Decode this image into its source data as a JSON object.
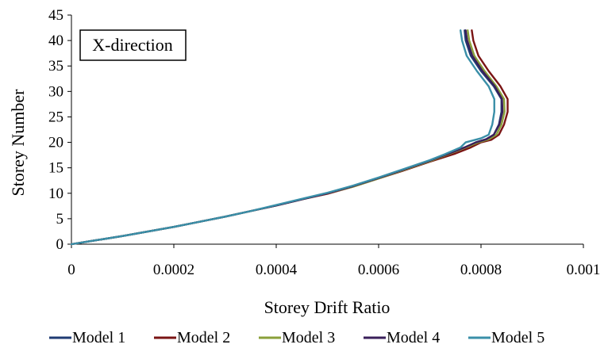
{
  "chart_data": {
    "type": "line",
    "title": "",
    "annotation": "X-direction",
    "xlabel": "Storey Drift Ratio",
    "ylabel": "Storey Number",
    "xlim": [
      0,
      0.001
    ],
    "ylim": [
      0,
      45
    ],
    "xticks": [
      0,
      0.0002,
      0.0004,
      0.0006,
      0.0008,
      0.001
    ],
    "xtick_labels": [
      "0",
      "0.0002",
      "0.0004",
      "0.0006",
      "0.0008",
      "0.001"
    ],
    "yticks": [
      0,
      5,
      10,
      15,
      20,
      25,
      30,
      35,
      40,
      45
    ],
    "ytick_labels": [
      "0",
      "5",
      "10",
      "15",
      "20",
      "25",
      "30",
      "35",
      "40",
      "45"
    ],
    "grid": false,
    "legend_position": "bottom",
    "series": [
      {
        "name": "Model 1",
        "color": "#1f3b73",
        "points": [
          [
            0,
            0
          ],
          [
            5e-05,
            0.8
          ],
          [
            0.0001,
            1.6
          ],
          [
            0.00015,
            2.5
          ],
          [
            0.0002,
            3.4
          ],
          [
            0.00025,
            4.4
          ],
          [
            0.0003,
            5.4
          ],
          [
            0.00035,
            6.5
          ],
          [
            0.0004,
            7.6
          ],
          [
            0.00045,
            8.8
          ],
          [
            0.0005,
            10.0
          ],
          [
            0.00055,
            11.4
          ],
          [
            0.0006,
            13.0
          ],
          [
            0.00065,
            14.7
          ],
          [
            0.0007,
            16.4
          ],
          [
            0.00074,
            17.8
          ],
          [
            0.00077,
            19.0
          ],
          [
            0.00079,
            20.0
          ],
          [
            0.00081,
            20.6
          ],
          [
            0.000825,
            21.5
          ],
          [
            0.000835,
            23.5
          ],
          [
            0.00084,
            26.0
          ],
          [
            0.00084,
            28.5
          ],
          [
            0.000825,
            31.0
          ],
          [
            0.0008,
            34.0
          ],
          [
            0.00078,
            37.0
          ],
          [
            0.00077,
            40.0
          ],
          [
            0.000768,
            42.0
          ]
        ]
      },
      {
        "name": "Model 2",
        "color": "#7a1414",
        "points": [
          [
            0,
            0
          ],
          [
            5e-05,
            0.8
          ],
          [
            0.0001,
            1.6
          ],
          [
            0.00015,
            2.5
          ],
          [
            0.0002,
            3.4
          ],
          [
            0.00025,
            4.4
          ],
          [
            0.0003,
            5.4
          ],
          [
            0.00035,
            6.5
          ],
          [
            0.0004,
            7.6
          ],
          [
            0.00045,
            8.8
          ],
          [
            0.0005,
            9.9
          ],
          [
            0.00055,
            11.3
          ],
          [
            0.0006,
            12.9
          ],
          [
            0.00065,
            14.5
          ],
          [
            0.0007,
            16.2
          ],
          [
            0.00075,
            17.8
          ],
          [
            0.00078,
            19.0
          ],
          [
            0.0008,
            20.0
          ],
          [
            0.00082,
            20.5
          ],
          [
            0.000835,
            21.5
          ],
          [
            0.000845,
            23.5
          ],
          [
            0.000852,
            26.0
          ],
          [
            0.000852,
            28.5
          ],
          [
            0.000838,
            31.0
          ],
          [
            0.000815,
            34.0
          ],
          [
            0.000795,
            37.0
          ],
          [
            0.000785,
            40.0
          ],
          [
            0.000782,
            42.0
          ]
        ]
      },
      {
        "name": "Model 3",
        "color": "#8aa03a",
        "points": [
          [
            0,
            0
          ],
          [
            5e-05,
            0.8
          ],
          [
            0.0001,
            1.6
          ],
          [
            0.00015,
            2.5
          ],
          [
            0.0002,
            3.4
          ],
          [
            0.00025,
            4.4
          ],
          [
            0.0003,
            5.4
          ],
          [
            0.00035,
            6.5
          ],
          [
            0.0004,
            7.6
          ],
          [
            0.00045,
            8.8
          ],
          [
            0.0005,
            10.0
          ],
          [
            0.00055,
            11.3
          ],
          [
            0.0006,
            12.9
          ],
          [
            0.00065,
            14.6
          ],
          [
            0.0007,
            16.3
          ],
          [
            0.00074,
            17.8
          ],
          [
            0.00077,
            19.0
          ],
          [
            0.000795,
            20.0
          ],
          [
            0.000815,
            20.6
          ],
          [
            0.00083,
            21.5
          ],
          [
            0.00084,
            23.5
          ],
          [
            0.000846,
            26.0
          ],
          [
            0.000845,
            28.5
          ],
          [
            0.00083,
            31.0
          ],
          [
            0.000807,
            34.0
          ],
          [
            0.000787,
            37.0
          ],
          [
            0.000777,
            40.0
          ],
          [
            0.000774,
            42.0
          ]
        ]
      },
      {
        "name": "Model 4",
        "color": "#3a1f5a",
        "points": [
          [
            0,
            0
          ],
          [
            5e-05,
            0.8
          ],
          [
            0.0001,
            1.6
          ],
          [
            0.00015,
            2.5
          ],
          [
            0.0002,
            3.4
          ],
          [
            0.00025,
            4.4
          ],
          [
            0.0003,
            5.4
          ],
          [
            0.00035,
            6.5
          ],
          [
            0.0004,
            7.6
          ],
          [
            0.00045,
            8.8
          ],
          [
            0.0005,
            10.0
          ],
          [
            0.00055,
            11.4
          ],
          [
            0.0006,
            13.0
          ],
          [
            0.00065,
            14.7
          ],
          [
            0.0007,
            16.4
          ],
          [
            0.00074,
            17.9
          ],
          [
            0.00077,
            19.1
          ],
          [
            0.00079,
            20.0
          ],
          [
            0.00081,
            20.6
          ],
          [
            0.000825,
            21.5
          ],
          [
            0.000836,
            23.5
          ],
          [
            0.000842,
            26.0
          ],
          [
            0.000841,
            28.5
          ],
          [
            0.000827,
            31.0
          ],
          [
            0.000803,
            34.0
          ],
          [
            0.000783,
            37.0
          ],
          [
            0.000773,
            40.0
          ],
          [
            0.00077,
            42.0
          ]
        ]
      },
      {
        "name": "Model 5",
        "color": "#3a8fa8",
        "points": [
          [
            0,
            0
          ],
          [
            5e-05,
            0.8
          ],
          [
            0.0001,
            1.6
          ],
          [
            0.00015,
            2.5
          ],
          [
            0.0002,
            3.4
          ],
          [
            0.00025,
            4.4
          ],
          [
            0.0003,
            5.4
          ],
          [
            0.00035,
            6.5
          ],
          [
            0.0004,
            7.7
          ],
          [
            0.00045,
            8.9
          ],
          [
            0.0005,
            10.1
          ],
          [
            0.00055,
            11.5
          ],
          [
            0.0006,
            13.1
          ],
          [
            0.00065,
            14.8
          ],
          [
            0.0007,
            16.5
          ],
          [
            0.00073,
            17.7
          ],
          [
            0.00076,
            19.0
          ],
          [
            0.00077,
            20.0
          ],
          [
            0.0008,
            20.8
          ],
          [
            0.000815,
            21.5
          ],
          [
            0.000822,
            23.5
          ],
          [
            0.000826,
            26.0
          ],
          [
            0.000826,
            28.5
          ],
          [
            0.000815,
            31.0
          ],
          [
            0.000792,
            34.0
          ],
          [
            0.000772,
            37.0
          ],
          [
            0.000763,
            40.0
          ],
          [
            0.00076,
            42.0
          ]
        ]
      }
    ]
  }
}
